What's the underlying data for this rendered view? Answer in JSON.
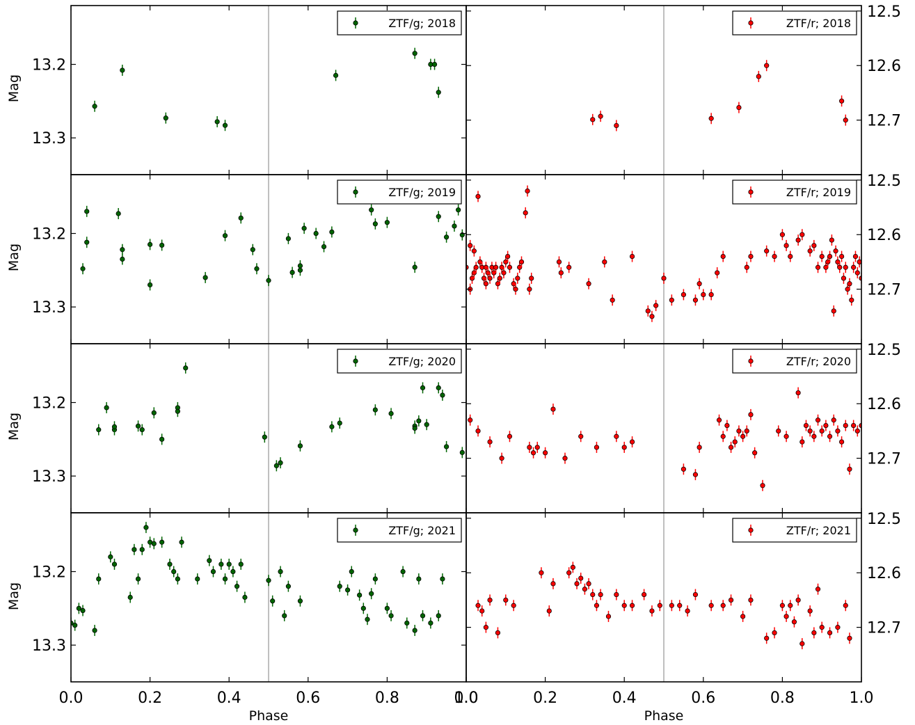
{
  "figure": {
    "xlabel": "Phase",
    "ylabel_left": "Mag",
    "left_ytick_labels": [
      "13.2",
      "13.3"
    ],
    "right_ytick_labels": [
      "12.5",
      "12.6",
      "12.7"
    ],
    "xtick_labels": [
      "0.0",
      "0.2",
      "0.4",
      "0.6",
      "0.8",
      "1.0"
    ],
    "colors": {
      "g": "#006400",
      "r": "#ff0000",
      "refline": "#aaaaaa"
    }
  },
  "chart_data": [
    {
      "type": "scatter",
      "legend": "ZTF/g; 2018",
      "band": "g",
      "row": 0,
      "col": 0,
      "xlim": [
        0,
        1
      ],
      "ylim": [
        13.35,
        13.12
      ],
      "inverted_y": true,
      "reference_line_x": 0.5,
      "legend_position": "top-right",
      "x": [
        0.06,
        0.13,
        0.24,
        0.37,
        0.39,
        0.67,
        0.87,
        0.91,
        0.92,
        0.93
      ],
      "y": [
        13.257,
        13.208,
        13.273,
        13.278,
        13.283,
        13.215,
        13.185,
        13.2,
        13.2,
        13.238
      ]
    },
    {
      "type": "scatter",
      "legend": "ZTF/r; 2018",
      "band": "r",
      "row": 0,
      "col": 1,
      "xlim": [
        0,
        1
      ],
      "ylim": [
        12.8,
        12.49
      ],
      "inverted_y": true,
      "reference_line_x": 0.5,
      "legend_position": "top-right",
      "x": [
        0.32,
        0.34,
        0.38,
        0.62,
        0.69,
        0.74,
        0.76,
        0.95,
        0.96
      ],
      "y": [
        12.699,
        12.693,
        12.71,
        12.697,
        12.677,
        12.62,
        12.6,
        12.665,
        12.7
      ]
    },
    {
      "type": "scatter",
      "legend": "ZTF/g; 2019",
      "band": "g",
      "row": 1,
      "col": 0,
      "xlim": [
        0,
        1
      ],
      "ylim": [
        13.35,
        13.12
      ],
      "inverted_y": true,
      "reference_line_x": 0.5,
      "legend_position": "top-right",
      "x": [
        0.03,
        0.04,
        0.04,
        0.12,
        0.13,
        0.13,
        0.2,
        0.2,
        0.23,
        0.34,
        0.39,
        0.43,
        0.46,
        0.47,
        0.5,
        0.55,
        0.56,
        0.58,
        0.58,
        0.59,
        0.62,
        0.64,
        0.66,
        0.76,
        0.77,
        0.8,
        0.87,
        0.93,
        0.95,
        0.97,
        0.98,
        0.99
      ],
      "y": [
        13.248,
        13.212,
        13.17,
        13.173,
        13.235,
        13.222,
        13.215,
        13.27,
        13.216,
        13.26,
        13.203,
        13.179,
        13.222,
        13.248,
        13.264,
        13.207,
        13.253,
        13.244,
        13.25,
        13.193,
        13.2,
        13.218,
        13.198,
        13.168,
        13.187,
        13.185,
        13.246,
        13.177,
        13.205,
        13.19,
        13.168,
        13.202
      ]
    },
    {
      "type": "scatter",
      "legend": "ZTF/r; 2019",
      "band": "r",
      "row": 1,
      "col": 1,
      "xlim": [
        0,
        1
      ],
      "ylim": [
        12.8,
        12.49
      ],
      "inverted_y": true,
      "reference_line_x": 0.5,
      "legend_position": "top-right",
      "x": [
        0.0,
        0.01,
        0.01,
        0.015,
        0.02,
        0.02,
        0.025,
        0.03,
        0.035,
        0.04,
        0.045,
        0.05,
        0.05,
        0.055,
        0.06,
        0.065,
        0.07,
        0.075,
        0.08,
        0.085,
        0.09,
        0.095,
        0.1,
        0.105,
        0.11,
        0.12,
        0.125,
        0.13,
        0.135,
        0.14,
        0.15,
        0.155,
        0.16,
        0.165,
        0.235,
        0.24,
        0.26,
        0.31,
        0.35,
        0.37,
        0.42,
        0.46,
        0.47,
        0.48,
        0.5,
        0.52,
        0.55,
        0.58,
        0.59,
        0.6,
        0.62,
        0.635,
        0.65,
        0.71,
        0.72,
        0.76,
        0.78,
        0.8,
        0.81,
        0.82,
        0.84,
        0.85,
        0.87,
        0.88,
        0.89,
        0.9,
        0.91,
        0.915,
        0.92,
        0.925,
        0.93,
        0.935,
        0.94,
        0.945,
        0.95,
        0.955,
        0.96,
        0.965,
        0.97,
        0.975,
        0.98,
        0.985,
        0.99,
        0.995,
        1.0
      ],
      "y": [
        12.66,
        12.62,
        12.7,
        12.68,
        12.67,
        12.63,
        12.66,
        12.53,
        12.65,
        12.66,
        12.68,
        12.69,
        12.66,
        12.67,
        12.68,
        12.66,
        12.67,
        12.66,
        12.69,
        12.68,
        12.66,
        12.67,
        12.65,
        12.64,
        12.66,
        12.69,
        12.7,
        12.68,
        12.66,
        12.65,
        12.56,
        12.52,
        12.7,
        12.68,
        12.65,
        12.67,
        12.66,
        12.69,
        12.65,
        12.72,
        12.64,
        12.74,
        12.75,
        12.73,
        12.68,
        12.72,
        12.71,
        12.72,
        12.69,
        12.71,
        12.71,
        12.67,
        12.64,
        12.66,
        12.64,
        12.63,
        12.64,
        12.6,
        12.62,
        12.64,
        12.61,
        12.6,
        12.63,
        12.62,
        12.66,
        12.64,
        12.66,
        12.65,
        12.64,
        12.61,
        12.74,
        12.63,
        12.65,
        12.66,
        12.64,
        12.68,
        12.66,
        12.7,
        12.69,
        12.72,
        12.66,
        12.64,
        12.67,
        12.65,
        12.68
      ]
    },
    {
      "type": "scatter",
      "legend": "ZTF/g; 2020",
      "band": "g",
      "row": 2,
      "col": 0,
      "xlim": [
        0,
        1
      ],
      "ylim": [
        13.35,
        13.12
      ],
      "inverted_y": true,
      "reference_line_x": 0.5,
      "legend_position": "top-right",
      "x": [
        0.07,
        0.09,
        0.11,
        0.11,
        0.17,
        0.18,
        0.21,
        0.23,
        0.27,
        0.27,
        0.29,
        0.49,
        0.52,
        0.53,
        0.58,
        0.66,
        0.68,
        0.77,
        0.81,
        0.87,
        0.87,
        0.88,
        0.89,
        0.9,
        0.93,
        0.94,
        0.95,
        0.99
      ],
      "y": [
        13.237,
        13.207,
        13.237,
        13.233,
        13.232,
        13.237,
        13.214,
        13.25,
        13.207,
        13.212,
        13.153,
        13.247,
        13.286,
        13.282,
        13.259,
        13.233,
        13.228,
        13.21,
        13.215,
        13.232,
        13.235,
        13.225,
        13.18,
        13.23,
        13.18,
        13.19,
        13.26,
        13.268
      ]
    },
    {
      "type": "scatter",
      "legend": "ZTF/r; 2020",
      "band": "r",
      "row": 2,
      "col": 1,
      "xlim": [
        0,
        1
      ],
      "ylim": [
        12.8,
        12.49
      ],
      "inverted_y": true,
      "reference_line_x": 0.5,
      "legend_position": "top-right",
      "x": [
        0.01,
        0.03,
        0.06,
        0.09,
        0.11,
        0.16,
        0.17,
        0.18,
        0.2,
        0.22,
        0.25,
        0.29,
        0.33,
        0.38,
        0.4,
        0.42,
        0.55,
        0.58,
        0.59,
        0.64,
        0.65,
        0.66,
        0.67,
        0.68,
        0.69,
        0.7,
        0.71,
        0.72,
        0.73,
        0.75,
        0.79,
        0.81,
        0.84,
        0.85,
        0.86,
        0.87,
        0.88,
        0.89,
        0.9,
        0.91,
        0.92,
        0.93,
        0.94,
        0.95,
        0.96,
        0.97,
        0.98,
        0.99,
        1.0
      ],
      "y": [
        12.63,
        12.65,
        12.67,
        12.7,
        12.66,
        12.68,
        12.69,
        12.68,
        12.69,
        12.61,
        12.7,
        12.66,
        12.68,
        12.66,
        12.68,
        12.67,
        12.72,
        12.73,
        12.68,
        12.63,
        12.66,
        12.64,
        12.68,
        12.67,
        12.65,
        12.66,
        12.65,
        12.62,
        12.69,
        12.75,
        12.65,
        12.66,
        12.58,
        12.67,
        12.64,
        12.65,
        12.66,
        12.63,
        12.65,
        12.64,
        12.66,
        12.63,
        12.65,
        12.67,
        12.64,
        12.72,
        12.64,
        12.65,
        12.64
      ]
    },
    {
      "type": "scatter",
      "legend": "ZTF/g; 2021",
      "band": "g",
      "row": 3,
      "col": 0,
      "xlim": [
        0,
        1
      ],
      "ylim": [
        13.35,
        13.12
      ],
      "inverted_y": true,
      "reference_line_x": 0.5,
      "legend_position": "top-right",
      "x": [
        0.0,
        0.01,
        0.02,
        0.03,
        0.06,
        0.07,
        0.1,
        0.11,
        0.15,
        0.16,
        0.17,
        0.18,
        0.19,
        0.2,
        0.21,
        0.23,
        0.25,
        0.26,
        0.27,
        0.28,
        0.32,
        0.35,
        0.36,
        0.38,
        0.39,
        0.4,
        0.41,
        0.42,
        0.43,
        0.44,
        0.5,
        0.51,
        0.53,
        0.54,
        0.55,
        0.58,
        0.68,
        0.7,
        0.71,
        0.73,
        0.74,
        0.75,
        0.76,
        0.77,
        0.8,
        0.81,
        0.84,
        0.85,
        0.87,
        0.88,
        0.89,
        0.91,
        0.93,
        0.94
      ],
      "y": [
        13.27,
        13.273,
        13.25,
        13.253,
        13.28,
        13.21,
        13.18,
        13.19,
        13.235,
        13.17,
        13.21,
        13.17,
        13.14,
        13.16,
        13.162,
        13.16,
        13.19,
        13.2,
        13.21,
        13.16,
        13.21,
        13.185,
        13.2,
        13.19,
        13.21,
        13.19,
        13.2,
        13.22,
        13.19,
        13.235,
        13.212,
        13.24,
        13.2,
        13.26,
        13.22,
        13.24,
        13.22,
        13.225,
        13.2,
        13.232,
        13.25,
        13.265,
        13.23,
        13.21,
        13.25,
        13.26,
        13.2,
        13.27,
        13.28,
        13.21,
        13.26,
        13.27,
        13.26,
        13.21
      ]
    },
    {
      "type": "scatter",
      "legend": "ZTF/r; 2021",
      "band": "r",
      "row": 3,
      "col": 1,
      "xlim": [
        0,
        1
      ],
      "ylim": [
        12.8,
        12.49
      ],
      "inverted_y": true,
      "reference_line_x": 0.5,
      "legend_position": "top-right",
      "x": [
        0.03,
        0.04,
        0.05,
        0.06,
        0.08,
        0.1,
        0.12,
        0.19,
        0.21,
        0.22,
        0.26,
        0.27,
        0.28,
        0.29,
        0.3,
        0.31,
        0.32,
        0.33,
        0.34,
        0.36,
        0.38,
        0.4,
        0.42,
        0.45,
        0.47,
        0.49,
        0.52,
        0.54,
        0.56,
        0.58,
        0.62,
        0.65,
        0.67,
        0.7,
        0.72,
        0.76,
        0.78,
        0.8,
        0.81,
        0.82,
        0.83,
        0.84,
        0.85,
        0.87,
        0.88,
        0.89,
        0.9,
        0.92,
        0.94,
        0.96,
        0.97
      ],
      "y": [
        12.66,
        12.67,
        12.7,
        12.65,
        12.71,
        12.65,
        12.66,
        12.6,
        12.67,
        12.62,
        12.6,
        12.59,
        12.62,
        12.61,
        12.63,
        12.62,
        12.64,
        12.66,
        12.64,
        12.68,
        12.64,
        12.66,
        12.66,
        12.64,
        12.67,
        12.66,
        12.66,
        12.66,
        12.67,
        12.64,
        12.66,
        12.66,
        12.65,
        12.68,
        12.65,
        12.72,
        12.71,
        12.66,
        12.68,
        12.66,
        12.69,
        12.65,
        12.73,
        12.67,
        12.71,
        12.63,
        12.7,
        12.71,
        12.7,
        12.66,
        12.72
      ]
    }
  ]
}
